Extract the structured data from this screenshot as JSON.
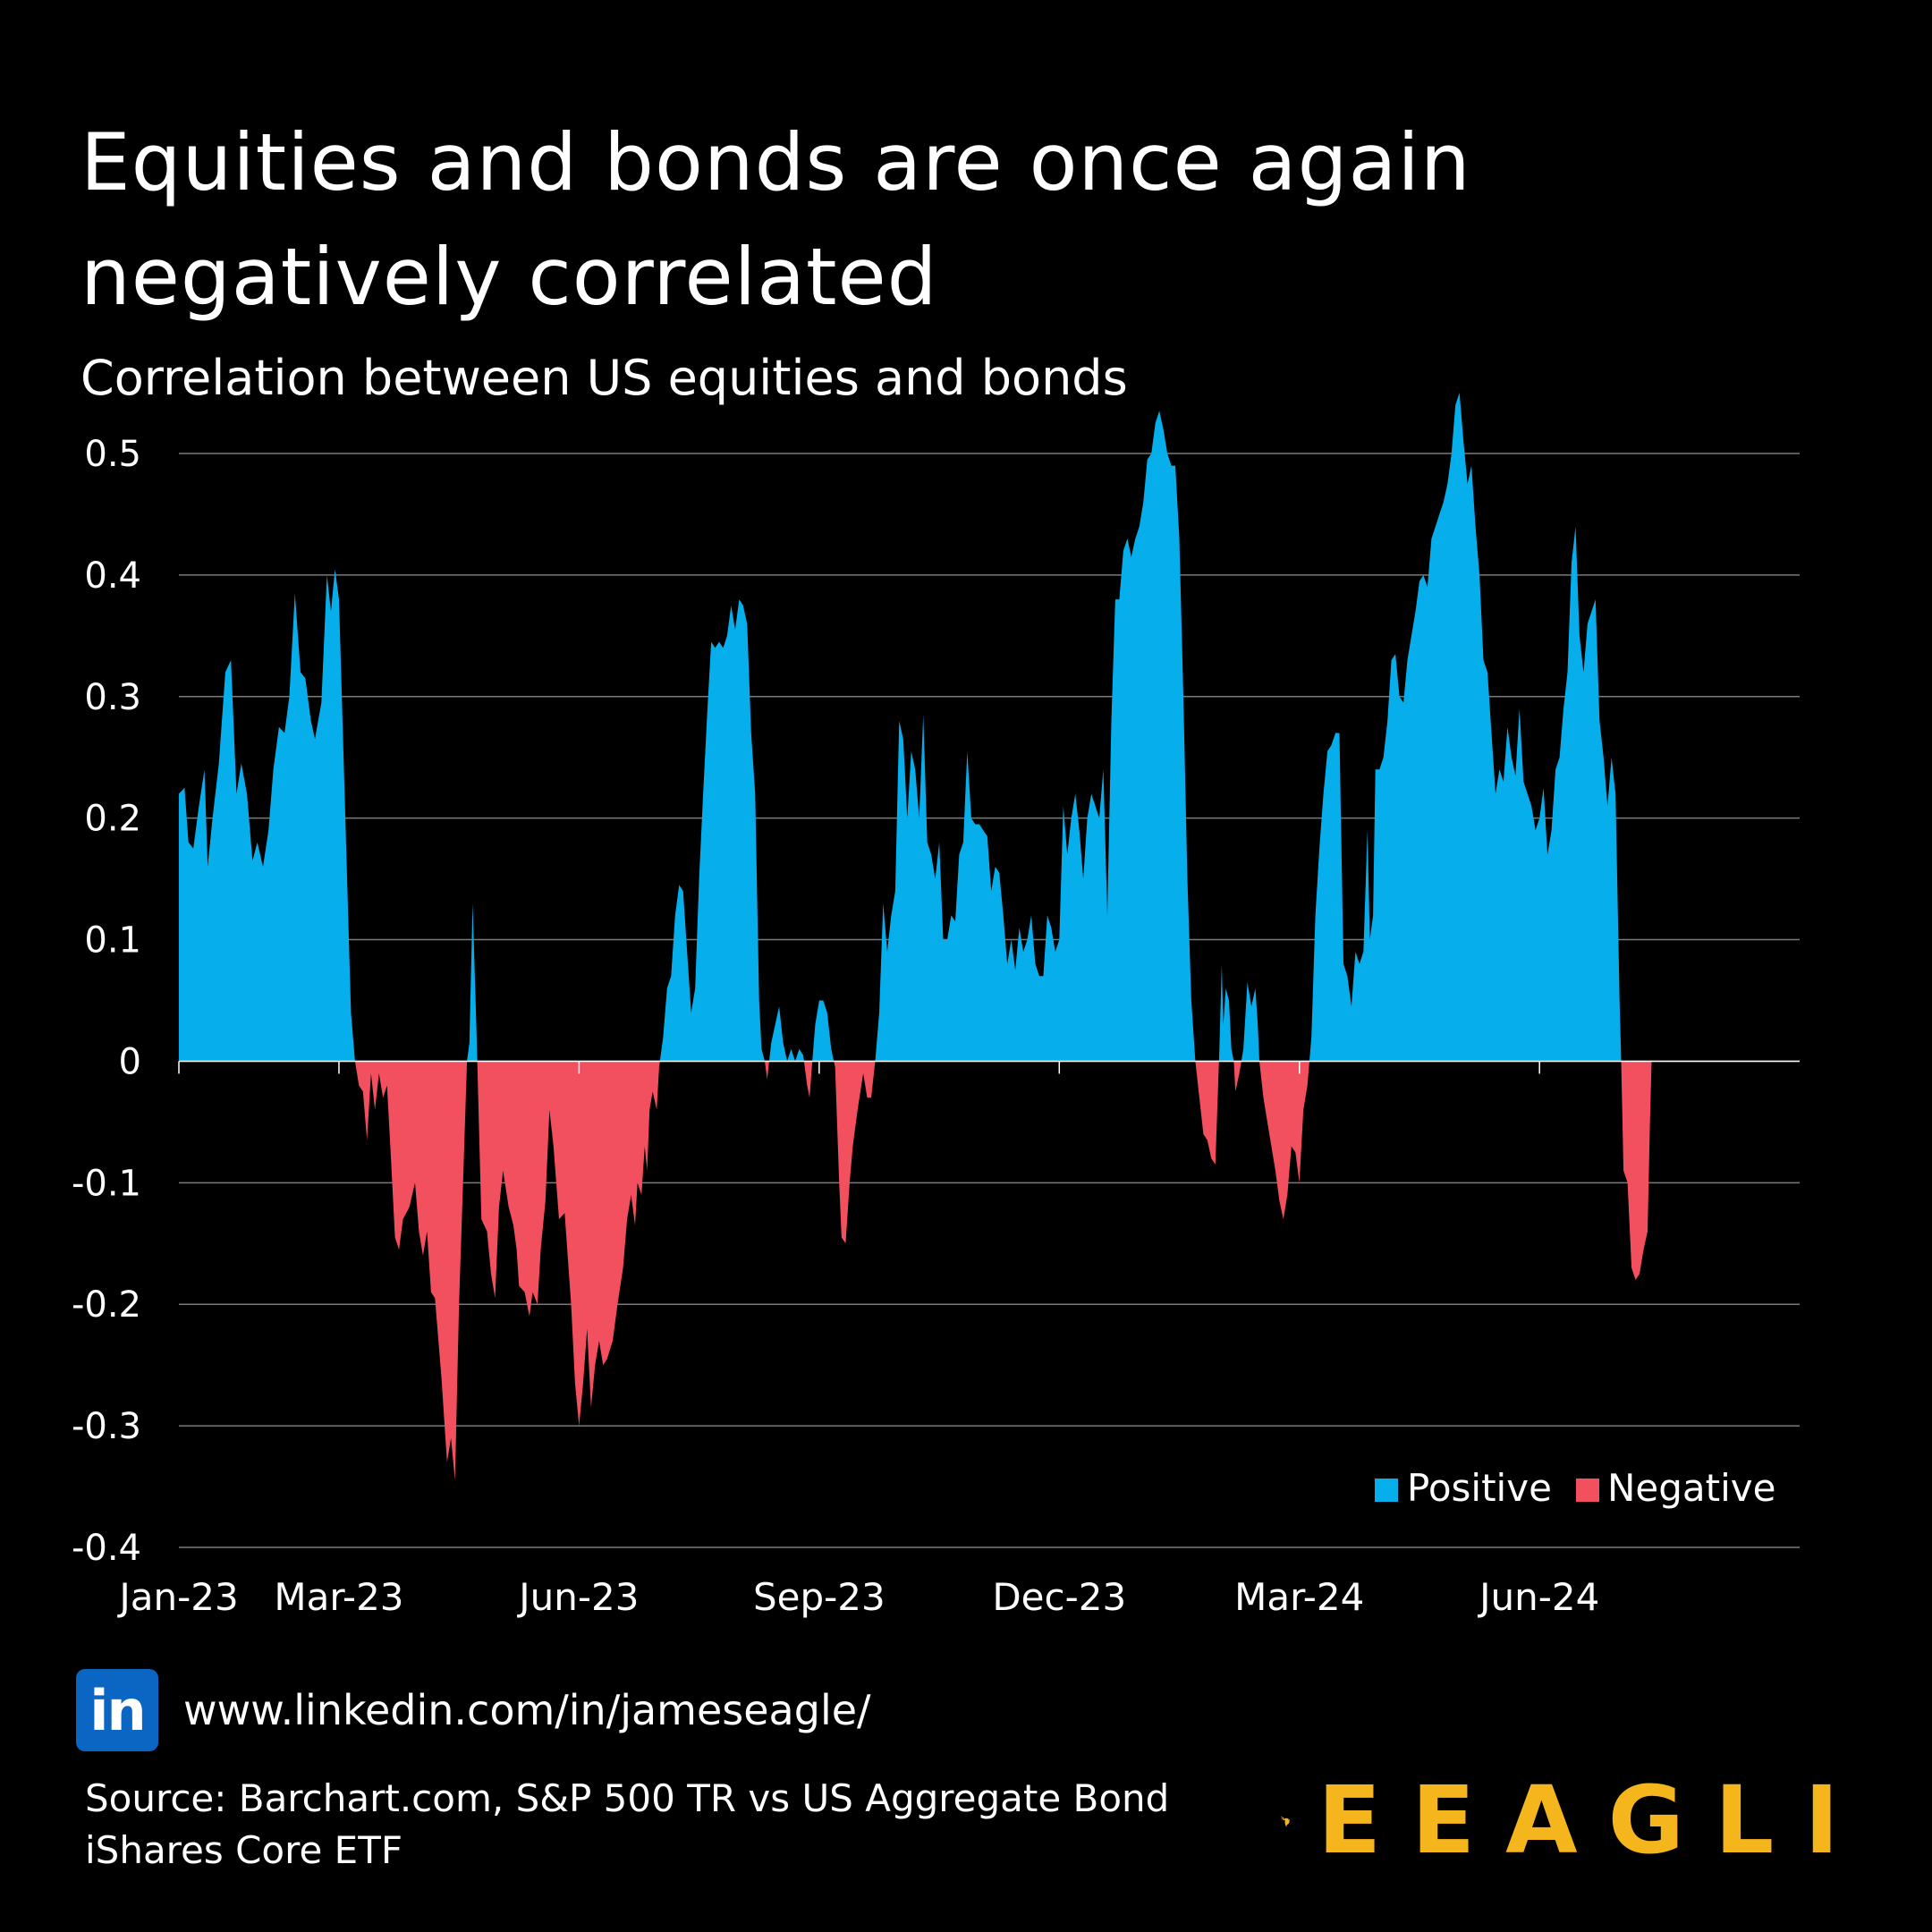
{
  "header": {
    "title_line1": "Equities and bonds are once again",
    "title_line2": "negatively correlated",
    "subtitle": "Correlation between US equities and bonds"
  },
  "colors": {
    "positive": "#06aeec",
    "negative": "#f24f5f",
    "grid": "#7a7a7a",
    "brand": "#f5b51c",
    "linkedin": "#0a66c2"
  },
  "chart_data": {
    "type": "area",
    "title": "Correlation between US equities and bonds",
    "xlabel": "",
    "ylabel": "",
    "ylim": [
      -0.4,
      0.55
    ],
    "yticks": [
      0.5,
      0.4,
      0.3,
      0.2,
      0.1,
      0,
      -0.1,
      -0.2,
      -0.3,
      -0.4
    ],
    "ytick_labels": [
      "0.5",
      "0.4",
      "0.3",
      "0.2",
      "0.1",
      "0",
      "-0.1",
      "-0.2",
      "-0.3",
      "-0.4"
    ],
    "xlim": [
      0,
      20.25
    ],
    "xticks": [
      0,
      2,
      5,
      8,
      11,
      14,
      17
    ],
    "xtick_labels": [
      "Jan-23",
      "Mar-23",
      "Jun-23",
      "Sep-23",
      "Dec-23",
      "Mar-24",
      "Jun-24"
    ],
    "x_unit": "months since Jan 2023",
    "grid": true,
    "legend_position": "bottom-right",
    "legend": [
      {
        "label": "Positive",
        "color": "#06aeec"
      },
      {
        "label": "Negative",
        "color": "#f24f5f"
      }
    ],
    "points": [
      [
        0.0,
        0.22
      ],
      [
        0.07,
        0.225
      ],
      [
        0.12,
        0.18
      ],
      [
        0.18,
        0.175
      ],
      [
        0.25,
        0.21
      ],
      [
        0.32,
        0.24
      ],
      [
        0.36,
        0.16
      ],
      [
        0.42,
        0.2
      ],
      [
        0.5,
        0.245
      ],
      [
        0.58,
        0.32
      ],
      [
        0.65,
        0.33
      ],
      [
        0.72,
        0.22
      ],
      [
        0.78,
        0.245
      ],
      [
        0.85,
        0.22
      ],
      [
        0.92,
        0.165
      ],
      [
        0.98,
        0.18
      ],
      [
        1.05,
        0.16
      ],
      [
        1.12,
        0.19
      ],
      [
        1.18,
        0.24
      ],
      [
        1.25,
        0.275
      ],
      [
        1.32,
        0.27
      ],
      [
        1.38,
        0.3
      ],
      [
        1.45,
        0.385
      ],
      [
        1.52,
        0.32
      ],
      [
        1.58,
        0.315
      ],
      [
        1.65,
        0.28
      ],
      [
        1.7,
        0.265
      ],
      [
        1.78,
        0.295
      ],
      [
        1.85,
        0.4
      ],
      [
        1.9,
        0.37
      ],
      [
        1.95,
        0.405
      ],
      [
        2.0,
        0.38
      ],
      [
        2.08,
        0.2
      ],
      [
        2.15,
        0.04
      ],
      [
        2.2,
        0.0
      ],
      [
        2.25,
        -0.02
      ],
      [
        2.3,
        -0.025
      ],
      [
        2.35,
        -0.065
      ],
      [
        2.4,
        -0.01
      ],
      [
        2.45,
        -0.04
      ],
      [
        2.5,
        -0.01
      ],
      [
        2.55,
        -0.03
      ],
      [
        2.6,
        -0.02
      ],
      [
        2.65,
        -0.08
      ],
      [
        2.7,
        -0.145
      ],
      [
        2.75,
        -0.155
      ],
      [
        2.8,
        -0.13
      ],
      [
        2.88,
        -0.12
      ],
      [
        2.95,
        -0.1
      ],
      [
        3.0,
        -0.14
      ],
      [
        3.05,
        -0.16
      ],
      [
        3.1,
        -0.14
      ],
      [
        3.15,
        -0.19
      ],
      [
        3.2,
        -0.195
      ],
      [
        3.28,
        -0.26
      ],
      [
        3.35,
        -0.33
      ],
      [
        3.4,
        -0.31
      ],
      [
        3.45,
        -0.345
      ],
      [
        3.5,
        -0.2
      ],
      [
        3.55,
        -0.1
      ],
      [
        3.6,
        0.0
      ],
      [
        3.63,
        0.015
      ],
      [
        3.67,
        0.13
      ],
      [
        3.72,
        0.02
      ],
      [
        3.78,
        -0.13
      ],
      [
        3.85,
        -0.14
      ],
      [
        3.9,
        -0.175
      ],
      [
        3.95,
        -0.195
      ],
      [
        4.0,
        -0.12
      ],
      [
        4.05,
        -0.09
      ],
      [
        4.12,
        -0.12
      ],
      [
        4.18,
        -0.135
      ],
      [
        4.22,
        -0.155
      ],
      [
        4.25,
        -0.185
      ],
      [
        4.32,
        -0.19
      ],
      [
        4.38,
        -0.21
      ],
      [
        4.42,
        -0.19
      ],
      [
        4.48,
        -0.2
      ],
      [
        4.52,
        -0.155
      ],
      [
        4.58,
        -0.115
      ],
      [
        4.63,
        -0.04
      ],
      [
        4.68,
        -0.07
      ],
      [
        4.75,
        -0.13
      ],
      [
        4.82,
        -0.125
      ],
      [
        4.9,
        -0.2
      ],
      [
        4.95,
        -0.265
      ],
      [
        5.0,
        -0.3
      ],
      [
        5.05,
        -0.265
      ],
      [
        5.1,
        -0.22
      ],
      [
        5.15,
        -0.285
      ],
      [
        5.2,
        -0.25
      ],
      [
        5.25,
        -0.23
      ],
      [
        5.3,
        -0.25
      ],
      [
        5.35,
        -0.245
      ],
      [
        5.42,
        -0.23
      ],
      [
        5.48,
        -0.2
      ],
      [
        5.55,
        -0.17
      ],
      [
        5.6,
        -0.13
      ],
      [
        5.65,
        -0.11
      ],
      [
        5.7,
        -0.135
      ],
      [
        5.73,
        -0.1
      ],
      [
        5.78,
        -0.11
      ],
      [
        5.82,
        -0.07
      ],
      [
        5.85,
        -0.09
      ],
      [
        5.88,
        -0.04
      ],
      [
        5.92,
        -0.025
      ],
      [
        5.97,
        -0.04
      ],
      [
        6.0,
        -0.005
      ],
      [
        6.05,
        0.02
      ],
      [
        6.1,
        0.06
      ],
      [
        6.15,
        0.07
      ],
      [
        6.2,
        0.12
      ],
      [
        6.25,
        0.145
      ],
      [
        6.3,
        0.14
      ],
      [
        6.35,
        0.09
      ],
      [
        6.4,
        0.04
      ],
      [
        6.45,
        0.06
      ],
      [
        6.5,
        0.15
      ],
      [
        6.55,
        0.22
      ],
      [
        6.6,
        0.285
      ],
      [
        6.65,
        0.345
      ],
      [
        6.7,
        0.34
      ],
      [
        6.75,
        0.345
      ],
      [
        6.8,
        0.34
      ],
      [
        6.85,
        0.35
      ],
      [
        6.9,
        0.375
      ],
      [
        6.95,
        0.355
      ],
      [
        7.0,
        0.38
      ],
      [
        7.05,
        0.375
      ],
      [
        7.1,
        0.36
      ],
      [
        7.15,
        0.27
      ],
      [
        7.2,
        0.22
      ],
      [
        7.25,
        0.05
      ],
      [
        7.28,
        0.01
      ],
      [
        7.32,
        0.0
      ],
      [
        7.35,
        -0.015
      ],
      [
        7.4,
        0.015
      ],
      [
        7.45,
        0.03
      ],
      [
        7.5,
        0.045
      ],
      [
        7.55,
        0.015
      ],
      [
        7.6,
        0.0
      ],
      [
        7.65,
        0.01
      ],
      [
        7.7,
        0.0
      ],
      [
        7.75,
        0.01
      ],
      [
        7.8,
        0.005
      ],
      [
        7.85,
        -0.02
      ],
      [
        7.88,
        -0.03
      ],
      [
        7.92,
        0.005
      ],
      [
        7.95,
        0.03
      ],
      [
        8.0,
        0.05
      ],
      [
        8.05,
        0.05
      ],
      [
        8.1,
        0.04
      ],
      [
        8.15,
        0.01
      ],
      [
        8.2,
        -0.005
      ],
      [
        8.25,
        -0.1
      ],
      [
        8.28,
        -0.145
      ],
      [
        8.33,
        -0.15
      ],
      [
        8.38,
        -0.1
      ],
      [
        8.42,
        -0.07
      ],
      [
        8.48,
        -0.04
      ],
      [
        8.55,
        -0.01
      ],
      [
        8.6,
        -0.03
      ],
      [
        8.65,
        -0.03
      ],
      [
        8.7,
        0.0
      ],
      [
        8.75,
        0.04
      ],
      [
        8.8,
        0.13
      ],
      [
        8.85,
        0.09
      ],
      [
        8.9,
        0.12
      ],
      [
        8.95,
        0.14
      ],
      [
        9.0,
        0.28
      ],
      [
        9.05,
        0.265
      ],
      [
        9.1,
        0.2
      ],
      [
        9.15,
        0.255
      ],
      [
        9.2,
        0.24
      ],
      [
        9.25,
        0.2
      ],
      [
        9.3,
        0.285
      ],
      [
        9.35,
        0.18
      ],
      [
        9.4,
        0.17
      ],
      [
        9.45,
        0.15
      ],
      [
        9.5,
        0.18
      ],
      [
        9.55,
        0.1
      ],
      [
        9.6,
        0.1
      ],
      [
        9.65,
        0.12
      ],
      [
        9.7,
        0.115
      ],
      [
        9.75,
        0.17
      ],
      [
        9.8,
        0.18
      ],
      [
        9.85,
        0.255
      ],
      [
        9.9,
        0.2
      ],
      [
        9.95,
        0.195
      ],
      [
        10.0,
        0.195
      ],
      [
        10.05,
        0.19
      ],
      [
        10.1,
        0.185
      ],
      [
        10.15,
        0.14
      ],
      [
        10.2,
        0.16
      ],
      [
        10.25,
        0.155
      ],
      [
        10.3,
        0.12
      ],
      [
        10.35,
        0.08
      ],
      [
        10.4,
        0.1
      ],
      [
        10.45,
        0.075
      ],
      [
        10.5,
        0.11
      ],
      [
        10.55,
        0.09
      ],
      [
        10.6,
        0.1
      ],
      [
        10.65,
        0.12
      ],
      [
        10.7,
        0.08
      ],
      [
        10.75,
        0.07
      ],
      [
        10.8,
        0.07
      ],
      [
        10.85,
        0.12
      ],
      [
        10.9,
        0.11
      ],
      [
        10.95,
        0.09
      ],
      [
        11.0,
        0.1
      ],
      [
        11.05,
        0.21
      ],
      [
        11.1,
        0.17
      ],
      [
        11.15,
        0.2
      ],
      [
        11.2,
        0.22
      ],
      [
        11.25,
        0.19
      ],
      [
        11.3,
        0.15
      ],
      [
        11.35,
        0.2
      ],
      [
        11.4,
        0.22
      ],
      [
        11.45,
        0.21
      ],
      [
        11.5,
        0.2
      ],
      [
        11.55,
        0.24
      ],
      [
        11.6,
        0.12
      ],
      [
        11.65,
        0.28
      ],
      [
        11.7,
        0.38
      ],
      [
        11.75,
        0.38
      ],
      [
        11.8,
        0.42
      ],
      [
        11.85,
        0.43
      ],
      [
        11.9,
        0.415
      ],
      [
        11.95,
        0.43
      ],
      [
        12.0,
        0.44
      ],
      [
        12.05,
        0.46
      ],
      [
        12.1,
        0.495
      ],
      [
        12.15,
        0.5
      ],
      [
        12.2,
        0.525
      ],
      [
        12.25,
        0.535
      ],
      [
        12.3,
        0.52
      ],
      [
        12.35,
        0.5
      ],
      [
        12.4,
        0.49
      ],
      [
        12.45,
        0.49
      ],
      [
        12.5,
        0.43
      ],
      [
        12.55,
        0.3
      ],
      [
        12.6,
        0.15
      ],
      [
        12.65,
        0.05
      ],
      [
        12.7,
        0.0
      ],
      [
        12.75,
        -0.03
      ],
      [
        12.8,
        -0.06
      ],
      [
        12.85,
        -0.065
      ],
      [
        12.9,
        -0.08
      ],
      [
        12.95,
        -0.085
      ],
      [
        13.0,
        0.01
      ],
      [
        13.03,
        0.08
      ],
      [
        13.05,
        0.03
      ],
      [
        13.08,
        0.06
      ],
      [
        13.12,
        0.05
      ],
      [
        13.15,
        0.01
      ],
      [
        13.18,
        0.0
      ],
      [
        13.2,
        -0.025
      ],
      [
        13.25,
        -0.01
      ],
      [
        13.3,
        0.01
      ],
      [
        13.35,
        0.065
      ],
      [
        13.4,
        0.045
      ],
      [
        13.45,
        0.06
      ],
      [
        13.48,
        0.03
      ],
      [
        13.5,
        0.0
      ],
      [
        13.55,
        -0.03
      ],
      [
        13.6,
        -0.05
      ],
      [
        13.65,
        -0.07
      ],
      [
        13.7,
        -0.09
      ],
      [
        13.75,
        -0.115
      ],
      [
        13.8,
        -0.13
      ],
      [
        13.85,
        -0.11
      ],
      [
        13.9,
        -0.07
      ],
      [
        13.95,
        -0.075
      ],
      [
        14.0,
        -0.1
      ],
      [
        14.05,
        -0.04
      ],
      [
        14.1,
        -0.02
      ],
      [
        14.15,
        0.02
      ],
      [
        14.2,
        0.12
      ],
      [
        14.25,
        0.175
      ],
      [
        14.3,
        0.22
      ],
      [
        14.35,
        0.255
      ],
      [
        14.4,
        0.26
      ],
      [
        14.45,
        0.27
      ],
      [
        14.5,
        0.27
      ],
      [
        14.55,
        0.08
      ],
      [
        14.6,
        0.07
      ],
      [
        14.65,
        0.045
      ],
      [
        14.7,
        0.09
      ],
      [
        14.75,
        0.08
      ],
      [
        14.8,
        0.09
      ],
      [
        14.85,
        0.19
      ],
      [
        14.88,
        0.1
      ],
      [
        14.92,
        0.12
      ],
      [
        14.95,
        0.24
      ],
      [
        15.0,
        0.24
      ],
      [
        15.05,
        0.25
      ],
      [
        15.1,
        0.28
      ],
      [
        15.15,
        0.33
      ],
      [
        15.2,
        0.335
      ],
      [
        15.25,
        0.3
      ],
      [
        15.3,
        0.295
      ],
      [
        15.35,
        0.33
      ],
      [
        15.4,
        0.35
      ],
      [
        15.45,
        0.37
      ],
      [
        15.5,
        0.395
      ],
      [
        15.55,
        0.4
      ],
      [
        15.6,
        0.39
      ],
      [
        15.65,
        0.43
      ],
      [
        15.7,
        0.44
      ],
      [
        15.75,
        0.45
      ],
      [
        15.8,
        0.46
      ],
      [
        15.85,
        0.475
      ],
      [
        15.9,
        0.5
      ],
      [
        15.95,
        0.54
      ],
      [
        16.0,
        0.55
      ],
      [
        16.05,
        0.51
      ],
      [
        16.1,
        0.475
      ],
      [
        16.15,
        0.49
      ],
      [
        16.2,
        0.44
      ],
      [
        16.25,
        0.4
      ],
      [
        16.3,
        0.33
      ],
      [
        16.35,
        0.32
      ],
      [
        16.4,
        0.27
      ],
      [
        16.45,
        0.22
      ],
      [
        16.5,
        0.24
      ],
      [
        16.55,
        0.23
      ],
      [
        16.6,
        0.275
      ],
      [
        16.65,
        0.25
      ],
      [
        16.7,
        0.235
      ],
      [
        16.75,
        0.29
      ],
      [
        16.8,
        0.23
      ],
      [
        16.85,
        0.22
      ],
      [
        16.9,
        0.21
      ],
      [
        16.95,
        0.19
      ],
      [
        17.0,
        0.2
      ],
      [
        17.05,
        0.225
      ],
      [
        17.1,
        0.17
      ],
      [
        17.15,
        0.19
      ],
      [
        17.2,
        0.24
      ],
      [
        17.25,
        0.25
      ],
      [
        17.3,
        0.29
      ],
      [
        17.35,
        0.32
      ],
      [
        17.4,
        0.41
      ],
      [
        17.45,
        0.44
      ],
      [
        17.5,
        0.35
      ],
      [
        17.55,
        0.32
      ],
      [
        17.6,
        0.36
      ],
      [
        17.65,
        0.37
      ],
      [
        17.7,
        0.38
      ],
      [
        17.75,
        0.28
      ],
      [
        17.8,
        0.25
      ],
      [
        17.85,
        0.21
      ],
      [
        17.9,
        0.25
      ],
      [
        17.95,
        0.22
      ],
      [
        18.0,
        0.05
      ],
      [
        18.02,
        0.0
      ],
      [
        18.05,
        -0.09
      ],
      [
        18.1,
        -0.1
      ],
      [
        18.15,
        -0.17
      ],
      [
        18.2,
        -0.18
      ],
      [
        18.25,
        -0.175
      ],
      [
        18.3,
        -0.155
      ],
      [
        18.35,
        -0.14
      ],
      [
        18.38,
        -0.05
      ],
      [
        18.4,
        0.0
      ]
    ]
  },
  "footer": {
    "linkedin_badge": "in",
    "linkedin_url": "www.linkedin.com/in/jameseagle/",
    "source_line1": "Source: Barchart.com, S&P 500 TR vs US Aggregate Bond",
    "source_line2": "iShares Core ETF",
    "brand_name": "EEAGLI",
    "brand_logo": "eagle-logo-icon"
  }
}
